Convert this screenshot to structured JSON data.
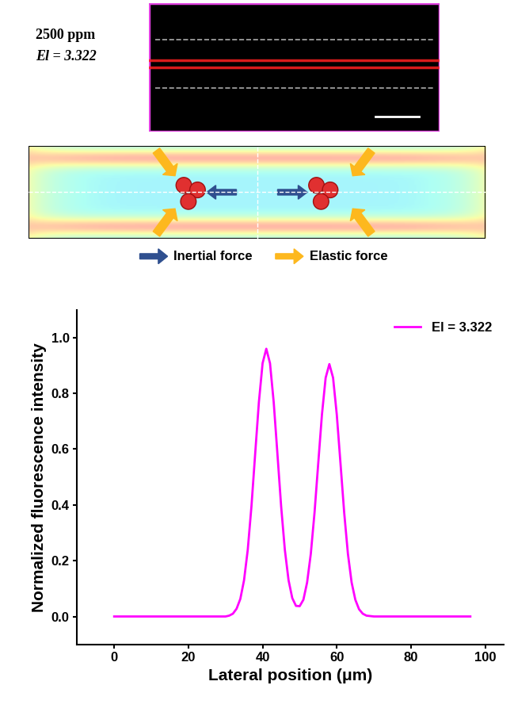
{
  "image_panel": {
    "concentration": "2500 ppm",
    "label": "El = 3.322"
  },
  "diagram": {
    "legend": [
      {
        "name": "Inertial force",
        "color": "#2f4f8f"
      },
      {
        "name": "Elastic force",
        "color": "#fdb81e"
      }
    ]
  },
  "chart_data": {
    "type": "line",
    "x": [
      0,
      10,
      20,
      30,
      31,
      32,
      33,
      34,
      35,
      36,
      37,
      38,
      39,
      40,
      41,
      42,
      43,
      44,
      45,
      46,
      47,
      48,
      49,
      50,
      51,
      52,
      53,
      54,
      55,
      56,
      57,
      58,
      59,
      60,
      61,
      62,
      63,
      64,
      65,
      66,
      67,
      68,
      70,
      80,
      90,
      96
    ],
    "series": [
      {
        "name": "El = 3.322",
        "color": "#ff00ff",
        "values": [
          0,
          0,
          0,
          0,
          0.003,
          0.01,
          0.028,
          0.063,
          0.13,
          0.239,
          0.395,
          0.583,
          0.768,
          0.908,
          0.96,
          0.908,
          0.768,
          0.583,
          0.395,
          0.239,
          0.13,
          0.066,
          0.038,
          0.037,
          0.06,
          0.122,
          0.225,
          0.372,
          0.549,
          0.724,
          0.856,
          0.905,
          0.856,
          0.724,
          0.549,
          0.372,
          0.225,
          0.122,
          0.06,
          0.026,
          0.01,
          0.003,
          0,
          0,
          0,
          0
        ]
      }
    ],
    "x_label": "Lateral position (μm)",
    "y_label": "Normalized fluorescence intensity",
    "xlim": [
      -10,
      105
    ],
    "ylim": [
      -0.1,
      1.1
    ],
    "xticks": [
      0,
      20,
      40,
      60,
      80,
      100
    ],
    "yticks": [
      {
        "value": 0,
        "label": "0.0"
      },
      {
        "value": 0.2,
        "label": "0.2"
      },
      {
        "value": 0.4,
        "label": "0.4"
      },
      {
        "value": 0.6,
        "label": "0.6"
      },
      {
        "value": 0.8,
        "label": "0.8"
      },
      {
        "value": 1.0,
        "label": "1.0"
      }
    ],
    "legend": "upper right",
    "grid": false
  }
}
